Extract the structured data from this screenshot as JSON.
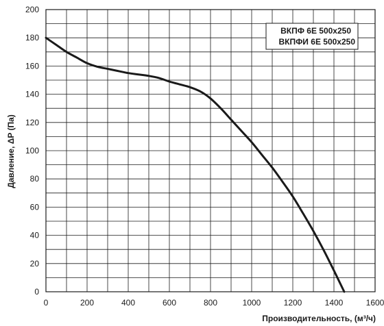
{
  "chart_data": {
    "type": "line",
    "title": "",
    "xlabel": "Производительность, (м³/ч)",
    "ylabel": "Давление, ΔP (Па)",
    "xlim": [
      0,
      1600
    ],
    "ylim": [
      0,
      200
    ],
    "x_ticks": [
      0,
      200,
      400,
      600,
      800,
      1000,
      1200,
      1400,
      1600
    ],
    "y_ticks": [
      0,
      20,
      40,
      60,
      80,
      100,
      120,
      140,
      160,
      180,
      200
    ],
    "x_grid_step": 100,
    "y_grid_step": 10,
    "grid": true,
    "legend": {
      "placement": "top-right",
      "entries": [
        "ВКПФ 6E 500x250",
        "ВКПФИ 6E 500x250"
      ]
    },
    "series": [
      {
        "x": [
          0,
          50,
          100,
          150,
          200,
          250,
          300,
          350,
          400,
          450,
          500,
          550,
          600,
          650,
          700,
          750,
          800,
          850,
          900,
          950,
          1000,
          1050,
          1100,
          1150,
          1200,
          1250,
          1300,
          1350,
          1400,
          1450
        ],
        "y": [
          180,
          175,
          170,
          166,
          162,
          159.5,
          158,
          156.5,
          155,
          154,
          153,
          151.5,
          149,
          147,
          145,
          142,
          137,
          130,
          122,
          114,
          106,
          97,
          88,
          78,
          67.5,
          55.5,
          43,
          29.5,
          15,
          0
        ]
      }
    ]
  }
}
